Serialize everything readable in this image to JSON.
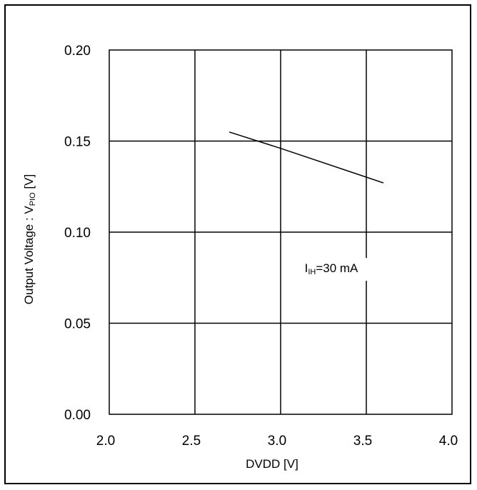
{
  "chart_data": {
    "type": "line",
    "title": "",
    "xlabel": "DVDD [V]",
    "ylabel": {
      "prefix": "Output Voltage : V",
      "subscript": "PIO",
      "suffix": " [V]"
    },
    "xlim": [
      2.0,
      4.0
    ],
    "ylim": [
      0.0,
      0.2
    ],
    "x_ticks": [
      "2.0",
      "2.5",
      "3.0",
      "3.5",
      "4.0"
    ],
    "y_ticks": [
      "0.00",
      "0.05",
      "0.10",
      "0.15",
      "0.20"
    ],
    "grid": true,
    "series": [
      {
        "x": [
          2.7,
          3.0,
          3.6
        ],
        "y": [
          0.155,
          0.146,
          0.127
        ],
        "color": "#000000"
      }
    ],
    "annotation": {
      "main": "I",
      "subscript": "IH",
      "rest": "=30 mA",
      "x": 3.14,
      "y": 0.078
    }
  }
}
